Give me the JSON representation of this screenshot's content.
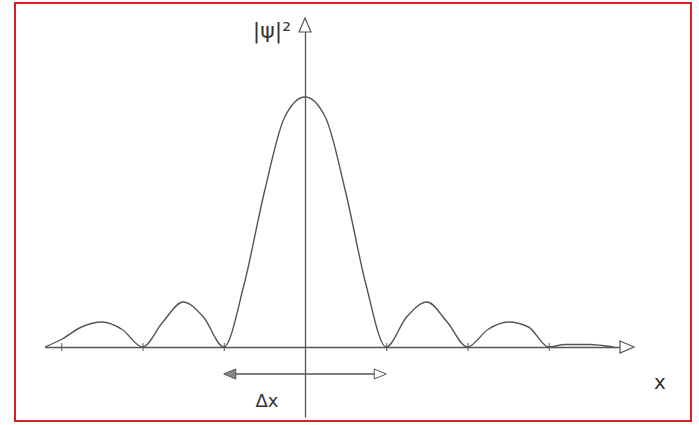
{
  "chart_data": {
    "type": "line",
    "y_label": "|ψ|²",
    "x_label": "x",
    "x": [
      -3.2,
      -3.0,
      -2.75,
      -2.5,
      -2.25,
      -2.0,
      -1.75,
      -1.5,
      -1.25,
      -1.0,
      -0.75,
      -0.5,
      -0.25,
      0,
      0.25,
      0.5,
      0.75,
      1.0,
      1.25,
      1.5,
      1.75,
      2.0,
      2.25,
      2.5,
      2.75,
      3.0,
      3.2,
      3.5,
      3.8
    ],
    "values": [
      0.0,
      0.03,
      0.08,
      0.1,
      0.07,
      0.0,
      0.1,
      0.18,
      0.12,
      0.0,
      0.25,
      0.62,
      0.92,
      1.0,
      0.92,
      0.62,
      0.25,
      0.0,
      0.12,
      0.18,
      0.1,
      0.0,
      0.07,
      0.1,
      0.08,
      0.0,
      0.01,
      0.01,
      0.0
    ],
    "color": "#555555",
    "xlim": [
      -3.2,
      4
    ],
    "ylim": [
      -0.28,
      1.3
    ],
    "xticks": [
      -3,
      -2,
      -1,
      1,
      2,
      3
    ],
    "tick_labels": false,
    "grid": false,
    "annotations": [
      {
        "text": "Δx",
        "x": [
          -1,
          1
        ]
      }
    ]
  }
}
